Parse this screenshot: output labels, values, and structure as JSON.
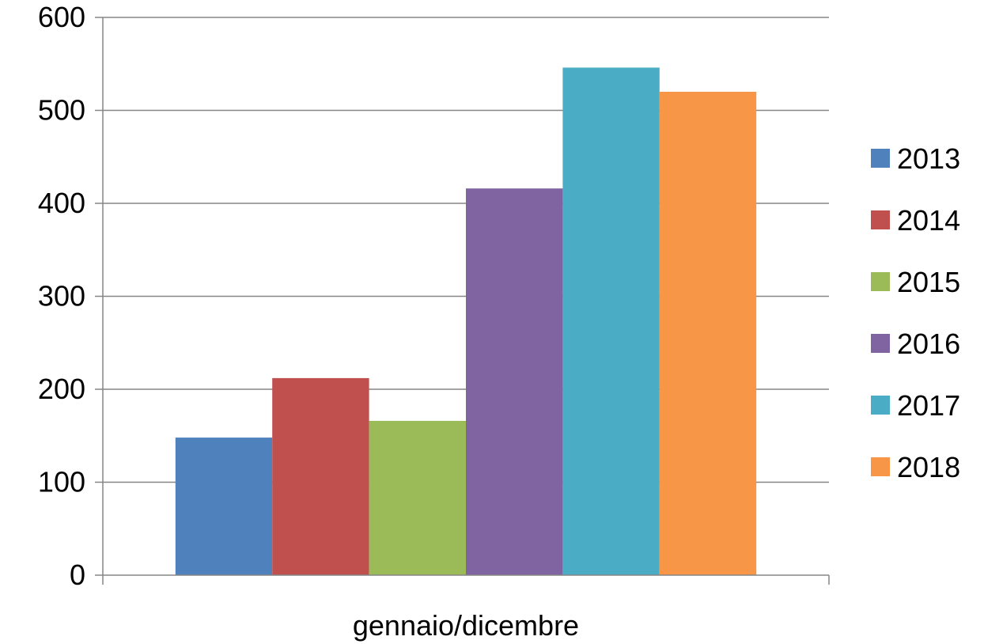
{
  "chart_data": {
    "type": "bar",
    "title": "",
    "xlabel": "",
    "ylabel": "",
    "categories": [
      "gennaio/dicembre"
    ],
    "series": [
      {
        "name": "2013",
        "values": [
          148
        ],
        "color": "#4F81BD"
      },
      {
        "name": "2014",
        "values": [
          212
        ],
        "color": "#C0504D"
      },
      {
        "name": "2015",
        "values": [
          166
        ],
        "color": "#9BBB59"
      },
      {
        "name": "2016",
        "values": [
          416
        ],
        "color": "#8064A2"
      },
      {
        "name": "2017",
        "values": [
          546
        ],
        "color": "#4BACC6"
      },
      {
        "name": "2018",
        "values": [
          520
        ],
        "color": "#F79646"
      }
    ],
    "ylim": [
      0,
      600
    ],
    "yticks": [
      "0",
      "100",
      "200",
      "300",
      "400",
      "500",
      "600"
    ],
    "grid": true,
    "legend_position": "right"
  }
}
